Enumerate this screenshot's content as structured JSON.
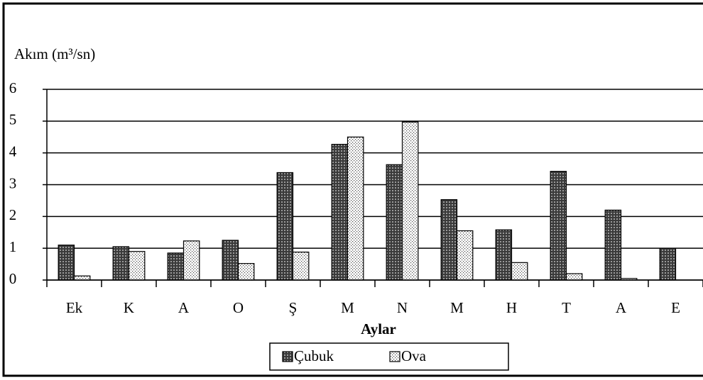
{
  "chart_data": {
    "type": "bar",
    "title": "Akım (m³/sn)",
    "x_label": "Aylar",
    "categories": [
      "Ek",
      "K",
      "A",
      "O",
      "Ş",
      "M",
      "N",
      "M",
      "H",
      "T",
      "A",
      "E"
    ],
    "series": [
      {
        "name": "Çubuk",
        "color": "#3a3a3a",
        "values": [
          1.1,
          1.05,
          0.85,
          1.25,
          3.38,
          4.27,
          3.63,
          2.53,
          1.58,
          3.42,
          2.2,
          1.0
        ]
      },
      {
        "name": "Ova",
        "color": "#ffffff",
        "values": [
          0.13,
          0.9,
          1.23,
          0.52,
          0.88,
          4.5,
          4.97,
          1.55,
          0.55,
          0.2,
          0.05,
          0
        ]
      }
    ],
    "ylim": [
      0,
      6
    ],
    "yticks": [
      0,
      1,
      2,
      3,
      4,
      5,
      6
    ],
    "grid": true,
    "legend": "bottom"
  }
}
